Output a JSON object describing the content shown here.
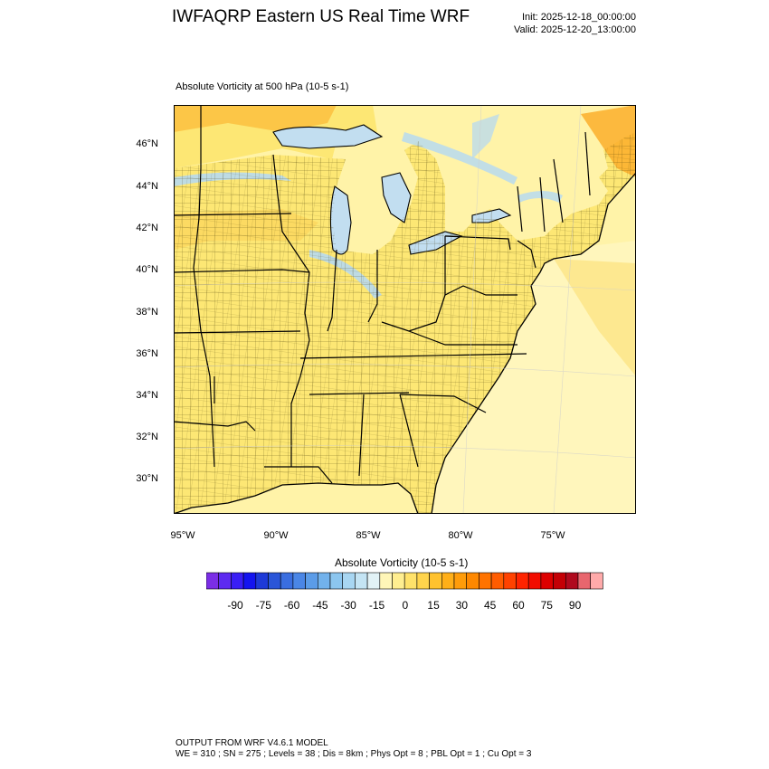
{
  "header": {
    "title": "IWFAQRP Eastern US Real Time WRF",
    "init": "Init: 2025-12-18_00:00:00",
    "valid": "Valid: 2025-12-20_13:00:00"
  },
  "map": {
    "field_title": "Absolute Vorticity at 500 hPa   (10-5 s-1)",
    "lat_labels": [
      "46°N",
      "44°N",
      "42°N",
      "40°N",
      "38°N",
      "36°N",
      "34°N",
      "32°N",
      "30°N"
    ],
    "lon_labels": [
      "95°W",
      "90°W",
      "85°W",
      "80°W",
      "75°W"
    ],
    "colors": {
      "land_base": "#fde774",
      "ocean_base": "#fff3a8",
      "boundary": "#000000",
      "negative_streak": "#a7d3ee",
      "positive_patch": "#fbb836"
    }
  },
  "colorbar": {
    "title": "Absolute Vorticity  (10-5 s-1)",
    "tick_labels": [
      "-90",
      "-75",
      "-60",
      "-45",
      "-30",
      "-15",
      "0",
      "15",
      "30",
      "45",
      "60",
      "75",
      "90"
    ],
    "colors": [
      "#7b2ee6",
      "#5d2af0",
      "#3a1ef5",
      "#1414f0",
      "#1e3ad8",
      "#2a55d8",
      "#3a6ee0",
      "#4a86e6",
      "#5b9ce8",
      "#72b2ec",
      "#8cc6ef",
      "#a8d6f2",
      "#c4e4f4",
      "#e2f2f6",
      "#fff6b8",
      "#ffee90",
      "#ffe26a",
      "#ffd44c",
      "#ffc22e",
      "#ffaf18",
      "#ff9c0a",
      "#ff8800",
      "#ff7300",
      "#ff5c00",
      "#ff4200",
      "#ff2400",
      "#f20c00",
      "#dd0000",
      "#c40006",
      "#b00a1e",
      "#e8666e",
      "#ffaaaa"
    ]
  },
  "footer": {
    "line1": "OUTPUT FROM WRF V4.6.1 MODEL",
    "line2": "WE = 310 ; SN = 275 ; Levels = 38 ; Dis = 8km ; Phys Opt = 8 ; PBL Opt = 1 ; Cu Opt = 3"
  }
}
